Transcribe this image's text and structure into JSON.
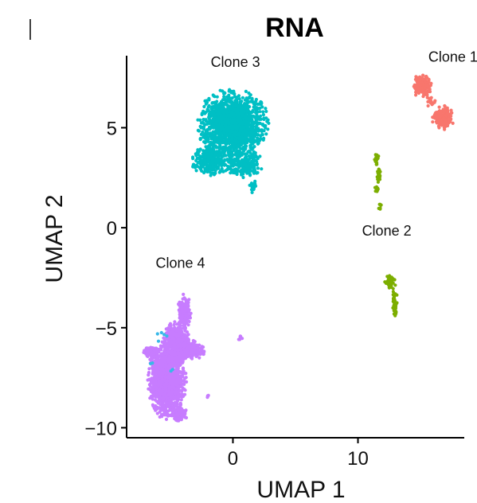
{
  "chart_data": {
    "type": "scatter",
    "title": "RNA",
    "xlabel": "UMAP 1",
    "ylabel": "UMAP 2",
    "xlim": [
      -8.5,
      18.5
    ],
    "ylim": [
      -10.5,
      8.6
    ],
    "x_ticks": [
      {
        "value": 0,
        "label": "0"
      },
      {
        "value": 10,
        "label": "10"
      }
    ],
    "y_ticks": [
      {
        "value": 5,
        "label": "5"
      },
      {
        "value": 0,
        "label": "0"
      },
      {
        "value": -5,
        "label": "−5"
      },
      {
        "value": -10,
        "label": "−10"
      }
    ],
    "grid": false,
    "legend": "none",
    "series": [
      {
        "color": "#F8766D",
        "clusters": [
          {
            "cx": 15.1,
            "cy": 7.1,
            "rx": 0.8,
            "ry": 0.6,
            "n": 140
          },
          {
            "cx": 16.8,
            "cy": 5.5,
            "rx": 0.9,
            "ry": 0.6,
            "n": 170
          },
          {
            "cx": 15.8,
            "cy": 6.3,
            "rx": 0.4,
            "ry": 0.3,
            "n": 18
          }
        ]
      },
      {
        "color": "#7CAE00",
        "clusters": [
          {
            "cx": 11.5,
            "cy": 3.4,
            "rx": 0.18,
            "ry": 0.3,
            "n": 18
          },
          {
            "cx": 11.7,
            "cy": 2.6,
            "rx": 0.2,
            "ry": 0.5,
            "n": 25
          },
          {
            "cx": 11.5,
            "cy": 1.9,
            "rx": 0.25,
            "ry": 0.25,
            "n": 15
          },
          {
            "cx": 11.8,
            "cy": 1.0,
            "rx": 0.15,
            "ry": 0.2,
            "n": 8
          },
          {
            "cx": 12.6,
            "cy": -2.7,
            "rx": 0.45,
            "ry": 0.4,
            "n": 40
          },
          {
            "cx": 12.9,
            "cy": -3.6,
            "rx": 0.25,
            "ry": 0.6,
            "n": 30
          },
          {
            "cx": 13.0,
            "cy": -4.2,
            "rx": 0.15,
            "ry": 0.3,
            "n": 10
          }
        ]
      },
      {
        "color": "#00BFC4",
        "clusters": [
          {
            "cx": 0.0,
            "cy": 5.2,
            "rx": 2.9,
            "ry": 1.8,
            "n": 1500
          },
          {
            "cx": -1.8,
            "cy": 3.4,
            "rx": 1.6,
            "ry": 0.8,
            "n": 300
          },
          {
            "cx": 0.8,
            "cy": 3.2,
            "rx": 1.6,
            "ry": 0.7,
            "n": 220
          },
          {
            "cx": 1.6,
            "cy": 2.0,
            "rx": 0.3,
            "ry": 0.4,
            "n": 25
          }
        ]
      },
      {
        "color": "#C77CFF",
        "clusters": [
          {
            "cx": -5.3,
            "cy": -7.6,
            "rx": 1.6,
            "ry": 2.0,
            "n": 1300
          },
          {
            "cx": -4.5,
            "cy": -5.8,
            "rx": 1.2,
            "ry": 1.2,
            "n": 420
          },
          {
            "cx": -3.9,
            "cy": -4.2,
            "rx": 0.55,
            "ry": 0.9,
            "n": 170
          },
          {
            "cx": -3.3,
            "cy": -6.1,
            "rx": 1.1,
            "ry": 0.55,
            "n": 180
          },
          {
            "cx": -6.6,
            "cy": -6.2,
            "rx": 0.6,
            "ry": 0.35,
            "n": 70
          },
          {
            "cx": -4.3,
            "cy": -9.3,
            "rx": 0.7,
            "ry": 0.4,
            "n": 140
          },
          {
            "cx": 0.6,
            "cy": -5.5,
            "rx": 0.18,
            "ry": 0.14,
            "n": 8
          },
          {
            "cx": -2.0,
            "cy": -8.4,
            "rx": 0.12,
            "ry": 0.12,
            "n": 4
          }
        ]
      },
      {
        "color": "#39B8E8",
        "clusters": [
          {
            "cx": -5.6,
            "cy": -5.3,
            "rx": 0.6,
            "ry": 0.6,
            "n": 5
          },
          {
            "cx": -6.4,
            "cy": -6.8,
            "rx": 0.3,
            "ry": 0.3,
            "n": 2
          },
          {
            "cx": -4.8,
            "cy": -7.2,
            "rx": 0.3,
            "ry": 0.3,
            "n": 2
          }
        ]
      }
    ],
    "annotations": [
      {
        "text": "Clone 1",
        "x": 17.6,
        "y": 8.3,
        "anchor": "middle"
      },
      {
        "text": "Clone 2",
        "x": 12.3,
        "y": -0.4,
        "anchor": "middle"
      },
      {
        "text": "Clone 3",
        "x": 0.2,
        "y": 8.05,
        "anchor": "middle"
      },
      {
        "text": "Clone 4",
        "x": -4.2,
        "y": -2.0,
        "anchor": "middle"
      }
    ]
  }
}
